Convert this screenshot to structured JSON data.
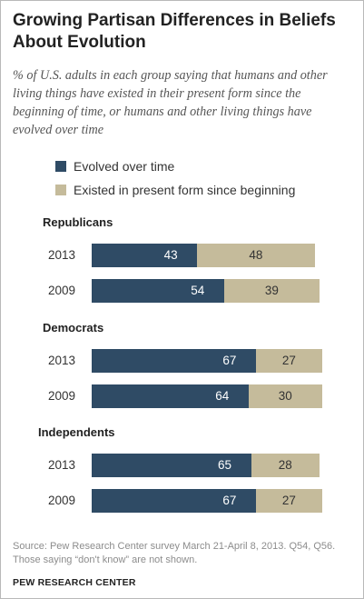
{
  "colors": {
    "evolved": "#2f4b65",
    "existed": "#c5bb9b"
  },
  "chart_data": {
    "type": "bar",
    "orientation": "horizontal",
    "stacked": true,
    "title": "Growing Partisan Differences in Beliefs About Evolution",
    "subtitle": "% of U.S. adults in each group saying that humans and other living things have existed in their present form since the beginning of time, or humans and other living things have evolved over time",
    "legend": [
      "Evolved over time",
      "Existed in present form since beginning"
    ],
    "xlim": [
      0,
      100
    ],
    "groups": [
      {
        "name": "Republicans",
        "rows": [
          {
            "year": "2013",
            "evolved": 43,
            "existed": 48
          },
          {
            "year": "2009",
            "evolved": 54,
            "existed": 39
          }
        ]
      },
      {
        "name": "Democrats",
        "rows": [
          {
            "year": "2013",
            "evolved": 67,
            "existed": 27
          },
          {
            "year": "2009",
            "evolved": 64,
            "existed": 30
          }
        ]
      },
      {
        "name": "Independents",
        "rows": [
          {
            "year": "2013",
            "evolved": 65,
            "existed": 28
          },
          {
            "year": "2009",
            "evolved": 67,
            "existed": 27
          }
        ]
      }
    ],
    "source": "Source: Pew Research Center survey March 21-April 8, 2013. Q54, Q56. Those saying “don't know” are not shown.",
    "brand": "PEW RESEARCH CENTER"
  }
}
